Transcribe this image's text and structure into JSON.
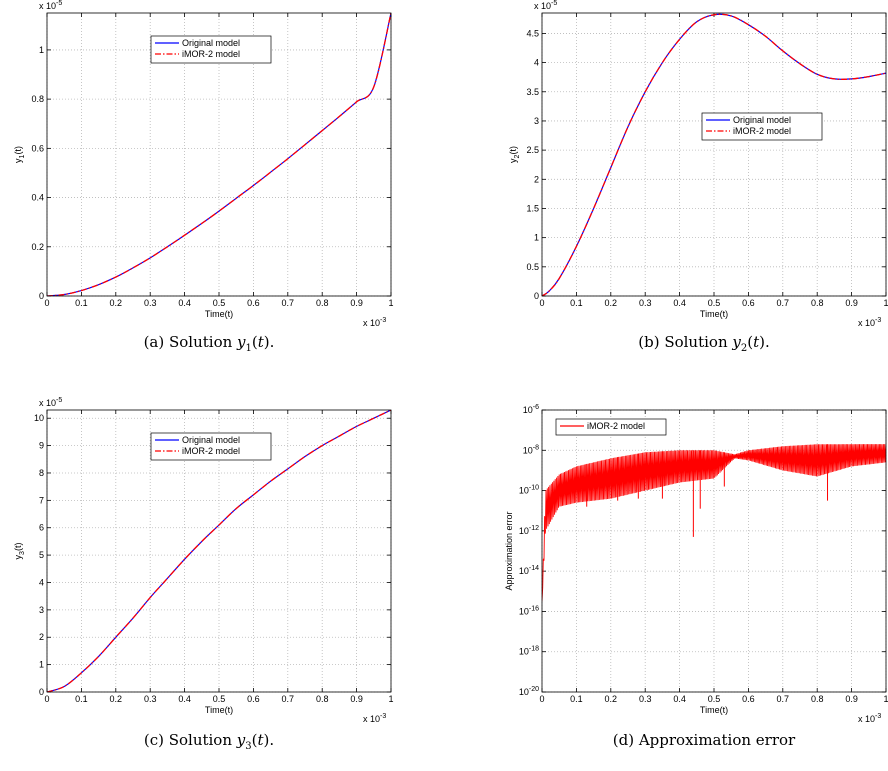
{
  "chart_data": [
    {
      "type": "line",
      "xlabel": "Time(t)",
      "ylabel": "y_1(t)",
      "xlim": [
        0,
        1
      ],
      "x_multiplier": "x 10^-3",
      "ylim": [
        0,
        1.15
      ],
      "y_multiplier": "x 10^-5",
      "x_ticks": [
        "0",
        "0.1",
        "0.2",
        "0.3",
        "0.4",
        "0.5",
        "0.6",
        "0.7",
        "0.8",
        "0.9",
        "1"
      ],
      "y_ticks": [
        "0",
        "0.2",
        "0.4",
        "0.6",
        "0.8",
        "1"
      ],
      "grid": true,
      "legend_position": "top-center",
      "series": [
        {
          "name": "Original model",
          "color": "#0000ff",
          "style": "solid",
          "x": [
            0,
            0.05,
            0.1,
            0.15,
            0.2,
            0.25,
            0.3,
            0.35,
            0.4,
            0.45,
            0.5,
            0.55,
            0.6,
            0.65,
            0.7,
            0.75,
            0.8,
            0.85,
            0.9,
            0.95,
            1.0
          ],
          "y": [
            0,
            0.006,
            0.022,
            0.046,
            0.077,
            0.114,
            0.155,
            0.2,
            0.247,
            0.295,
            0.345,
            0.397,
            0.449,
            0.503,
            0.558,
            0.615,
            0.672,
            0.73,
            0.789,
            0.85,
            1.15
          ]
        },
        {
          "name": "iMOR-2  model",
          "color": "#ff0000",
          "style": "dashdot",
          "x": [
            0,
            0.05,
            0.1,
            0.15,
            0.2,
            0.25,
            0.3,
            0.35,
            0.4,
            0.45,
            0.5,
            0.55,
            0.6,
            0.65,
            0.7,
            0.75,
            0.8,
            0.85,
            0.9,
            0.95,
            1.0
          ],
          "y": [
            0,
            0.006,
            0.022,
            0.046,
            0.077,
            0.114,
            0.155,
            0.2,
            0.247,
            0.295,
            0.345,
            0.397,
            0.449,
            0.503,
            0.558,
            0.615,
            0.672,
            0.73,
            0.789,
            0.85,
            1.15
          ]
        }
      ],
      "caption": "(a)  Solution ",
      "caption_math": "y1(t)",
      "caption_end": "."
    },
    {
      "type": "line",
      "xlabel": "Time(t)",
      "ylabel": "y_2(t)",
      "xlim": [
        0,
        1
      ],
      "x_multiplier": "x 10^-3",
      "ylim": [
        0,
        4.85
      ],
      "y_multiplier": "x 10^-5",
      "x_ticks": [
        "0",
        "0.1",
        "0.2",
        "0.3",
        "0.4",
        "0.5",
        "0.6",
        "0.7",
        "0.8",
        "0.9",
        "1"
      ],
      "y_ticks": [
        "0",
        "0.5",
        "1",
        "1.5",
        "2",
        "2.5",
        "3",
        "3.5",
        "4",
        "4.5"
      ],
      "grid": true,
      "legend_position": "right-middle",
      "series": [
        {
          "name": "Original model",
          "color": "#0000ff",
          "style": "solid",
          "x": [
            0,
            0.02,
            0.05,
            0.1,
            0.15,
            0.2,
            0.25,
            0.3,
            0.35,
            0.4,
            0.45,
            0.5,
            0.55,
            0.6,
            0.65,
            0.7,
            0.75,
            0.8,
            0.85,
            0.9,
            0.95,
            1.0
          ],
          "y": [
            0,
            0.08,
            0.3,
            0.85,
            1.5,
            2.2,
            2.9,
            3.5,
            4.0,
            4.4,
            4.7,
            4.82,
            4.8,
            4.65,
            4.45,
            4.2,
            3.98,
            3.8,
            3.72,
            3.72,
            3.76,
            3.82
          ]
        },
        {
          "name": "iMOR-2  model",
          "color": "#ff0000",
          "style": "dashdot",
          "x": [
            0,
            0.02,
            0.05,
            0.1,
            0.15,
            0.2,
            0.25,
            0.3,
            0.35,
            0.4,
            0.45,
            0.5,
            0.55,
            0.6,
            0.65,
            0.7,
            0.75,
            0.8,
            0.85,
            0.9,
            0.95,
            1.0
          ],
          "y": [
            0,
            0.08,
            0.3,
            0.85,
            1.5,
            2.2,
            2.9,
            3.5,
            4.0,
            4.4,
            4.7,
            4.82,
            4.8,
            4.65,
            4.45,
            4.2,
            3.98,
            3.8,
            3.72,
            3.72,
            3.76,
            3.82
          ]
        }
      ],
      "caption": "(b)  Solution ",
      "caption_math": "y2(t)",
      "caption_end": "."
    },
    {
      "type": "line",
      "xlabel": "Time(t)",
      "ylabel": "y_3(t)",
      "xlim": [
        0,
        1
      ],
      "x_multiplier": "x 10^-3",
      "ylim": [
        0,
        10.3
      ],
      "y_multiplier": "x 10^-5",
      "x_ticks": [
        "0",
        "0.1",
        "0.2",
        "0.3",
        "0.4",
        "0.5",
        "0.6",
        "0.7",
        "0.8",
        "0.9",
        "1"
      ],
      "y_ticks": [
        "0",
        "1",
        "2",
        "3",
        "4",
        "5",
        "6",
        "7",
        "8",
        "9",
        "10"
      ],
      "grid": true,
      "legend_position": "top-center",
      "series": [
        {
          "name": "Original model",
          "color": "#0000ff",
          "style": "solid",
          "x": [
            0,
            0.05,
            0.1,
            0.15,
            0.2,
            0.25,
            0.3,
            0.35,
            0.4,
            0.45,
            0.5,
            0.55,
            0.6,
            0.65,
            0.7,
            0.75,
            0.8,
            0.85,
            0.9,
            0.95,
            1.0
          ],
          "y": [
            0,
            0.2,
            0.7,
            1.3,
            2.0,
            2.7,
            3.45,
            4.15,
            4.85,
            5.5,
            6.1,
            6.7,
            7.2,
            7.7,
            8.15,
            8.6,
            9.0,
            9.35,
            9.7,
            10.0,
            10.3
          ]
        },
        {
          "name": "iMOR-2  model",
          "color": "#ff0000",
          "style": "dashdot",
          "x": [
            0,
            0.05,
            0.1,
            0.15,
            0.2,
            0.25,
            0.3,
            0.35,
            0.4,
            0.45,
            0.5,
            0.55,
            0.6,
            0.65,
            0.7,
            0.75,
            0.8,
            0.85,
            0.9,
            0.95,
            1.0
          ],
          "y": [
            0,
            0.2,
            0.7,
            1.3,
            2.0,
            2.7,
            3.45,
            4.15,
            4.85,
            5.5,
            6.1,
            6.7,
            7.2,
            7.7,
            8.15,
            8.6,
            9.0,
            9.35,
            9.7,
            10.0,
            10.3
          ]
        }
      ],
      "caption": "(c)  Solution ",
      "caption_math": "y3(t)",
      "caption_end": "."
    },
    {
      "type": "line",
      "xlabel": "Time(t)",
      "ylabel": "Approximation error",
      "xlim": [
        0,
        1
      ],
      "x_multiplier": "x 10^-3",
      "y_scale": "log",
      "ylim_exp": [
        -20,
        -6
      ],
      "x_ticks": [
        "0",
        "0.1",
        "0.2",
        "0.3",
        "0.4",
        "0.5",
        "0.6",
        "0.7",
        "0.8",
        "0.9",
        "1"
      ],
      "y_ticks_exp": [
        -6,
        -8,
        -10,
        -12,
        -14,
        -16,
        -18,
        -20
      ],
      "grid": true,
      "legend_position": "top-left",
      "series": [
        {
          "name": "iMOR-2 model",
          "color": "#ff0000",
          "style": "solid",
          "envelope_x": [
            0,
            0.01,
            0.05,
            0.1,
            0.2,
            0.3,
            0.4,
            0.5,
            0.56,
            0.6,
            0.7,
            0.8,
            0.9,
            1.0
          ],
          "envelope_upper_exp": [
            -15.5,
            -10,
            -9.2,
            -8.8,
            -8.4,
            -8.1,
            -8.0,
            -8.0,
            -8.2,
            -8.0,
            -7.8,
            -7.7,
            -7.7,
            -7.7
          ],
          "envelope_lower_exp": [
            -15.5,
            -12,
            -10.8,
            -10.6,
            -10.4,
            -10.0,
            -9.6,
            -9.4,
            -8.4,
            -8.5,
            -9.0,
            -9.3,
            -8.8,
            -8.6
          ],
          "dips_x": [
            0.13,
            0.22,
            0.28,
            0.35,
            0.44,
            0.46,
            0.53,
            0.83
          ],
          "dips_exp": [
            -10.8,
            -10.5,
            -10.4,
            -10.4,
            -12.3,
            -10.9,
            -9.8,
            -10.5
          ]
        }
      ],
      "caption": "(d)  Approximation error",
      "caption_math": "",
      "caption_end": ""
    }
  ]
}
